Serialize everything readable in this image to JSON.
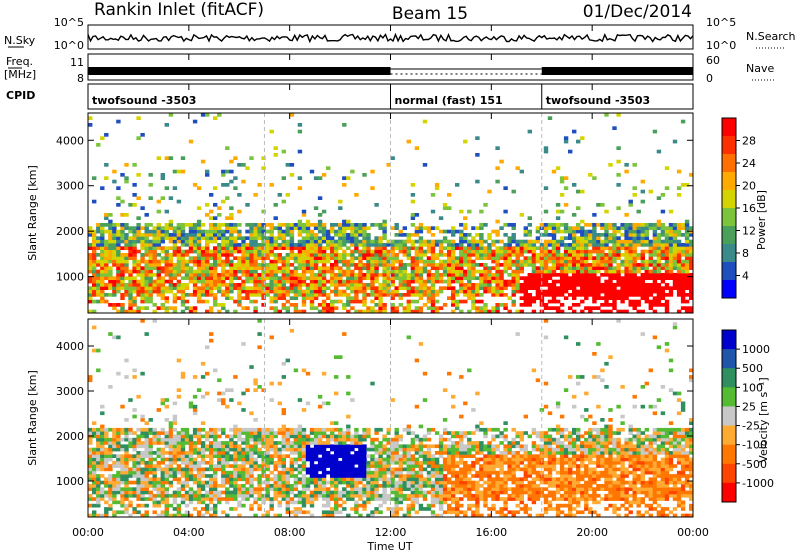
{
  "header": {
    "station": "Rankin Inlet (fitACF)",
    "beam": "Beam 15",
    "date": "01/Dec/2014"
  },
  "strip": {
    "nsky_label": "N.Sky",
    "nsky_ticks": [
      "10^5",
      "10^0"
    ],
    "nsearch_label": "N.Search",
    "nsearch_ticks": [
      "10^5",
      "10^0"
    ],
    "freq_label": "Freq.",
    "freq_unit": "[MHz]",
    "freq_ticks": [
      "11",
      "8"
    ],
    "nave_label": "Nave",
    "nave_ticks": [
      "60",
      "0"
    ],
    "cpid_label": "CPID"
  },
  "cpid_segments": [
    {
      "label": "twofsound -3503",
      "start_hour": 0
    },
    {
      "label": "normal (fast) 151",
      "start_hour": 12
    },
    {
      "label": "twofsound -3503",
      "start_hour": 18
    }
  ],
  "chart_data": [
    {
      "type": "heatmap",
      "xlabel": "Time UT",
      "ylabel": "Slant Range [km]",
      "xlim": [
        0,
        24
      ],
      "ylim": [
        200,
        4600
      ],
      "y_ticks": [
        1000,
        2000,
        3000,
        4000
      ],
      "colorbar_label": "Power [dB]",
      "colorbar_ticks": [
        "28",
        "24",
        "20",
        "16",
        "12",
        "8",
        "4"
      ],
      "colorscale": [
        "#0000ff",
        "#1f4fbf",
        "#3a8a8a",
        "#4aa05a",
        "#7cc43c",
        "#d4d400",
        "#ffaa00",
        "#ff7000",
        "#ff3000",
        "#ff0000"
      ],
      "range_min": 0,
      "range_max": 30
    },
    {
      "type": "heatmap",
      "xlabel": "Time UT",
      "ylabel": "Slant Range [km]",
      "xlim": [
        0,
        24
      ],
      "ylim": [
        200,
        4600
      ],
      "y_ticks": [
        1000,
        2000,
        3000,
        4000
      ],
      "colorbar_label": "Velocity [m s⁻¹]",
      "colorbar_ticks": [
        "1000",
        "500",
        "100",
        "25",
        "-25",
        "-100",
        "-500",
        "-1000"
      ],
      "colorscale": [
        "#ff0000",
        "#ff4400",
        "#ff7700",
        "#ffaa33",
        "#c8c8c8",
        "#55bb33",
        "#2f8f5f",
        "#1f55aa",
        "#0000cc"
      ],
      "range_min": -1000,
      "range_max": 1000
    }
  ],
  "x_axis": {
    "ticks": [
      "00:00",
      "04:00",
      "08:00",
      "12:00",
      "16:00",
      "20:00",
      "00:00"
    ],
    "label": "Time UT"
  }
}
